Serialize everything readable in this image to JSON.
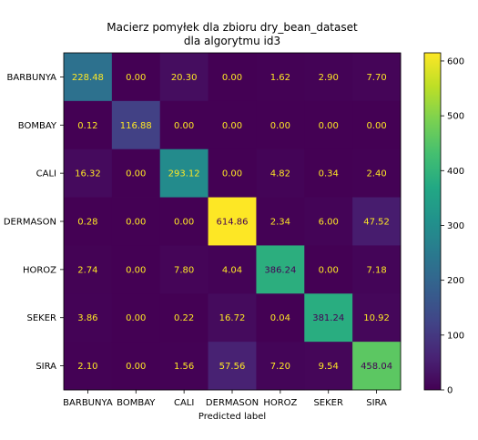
{
  "chart_data": {
    "type": "heatmap",
    "title_line1": "Macierz pomyłek dla zbioru dry_bean_dataset",
    "title_line2": "dla algorytmu id3",
    "xlabel": "Predicted label",
    "ylabel": "",
    "x_categories": [
      "BARBUNYA",
      "BOMBAY",
      "CALI",
      "DERMASON",
      "HOROZ",
      "SEKER",
      "SIRA"
    ],
    "y_categories": [
      "BARBUNYA",
      "BOMBAY",
      "CALI",
      "DERMASON",
      "HOROZ",
      "SEKER",
      "SIRA"
    ],
    "values": [
      [
        228.48,
        0.0,
        20.3,
        0.0,
        1.62,
        2.9,
        7.7
      ],
      [
        0.12,
        116.88,
        0.0,
        0.0,
        0.0,
        0.0,
        0.0
      ],
      [
        16.32,
        0.0,
        293.12,
        0.0,
        4.82,
        0.34,
        2.4
      ],
      [
        0.28,
        0.0,
        0.0,
        614.86,
        2.34,
        6.0,
        47.52
      ],
      [
        2.74,
        0.0,
        7.8,
        4.04,
        386.24,
        0.0,
        7.18
      ],
      [
        3.86,
        0.0,
        0.22,
        16.72,
        0.04,
        381.24,
        10.92
      ],
      [
        2.1,
        0.0,
        1.56,
        57.56,
        7.2,
        9.54,
        458.04
      ]
    ],
    "value_format_decimals": 2,
    "colormap": "viridis",
    "color_range": [
      0,
      614.86
    ],
    "colorbar_ticks": [
      0,
      100,
      200,
      300,
      400,
      500,
      600
    ],
    "text_color_on_dark": "#FDE725",
    "text_color_on_light": "#440154"
  }
}
